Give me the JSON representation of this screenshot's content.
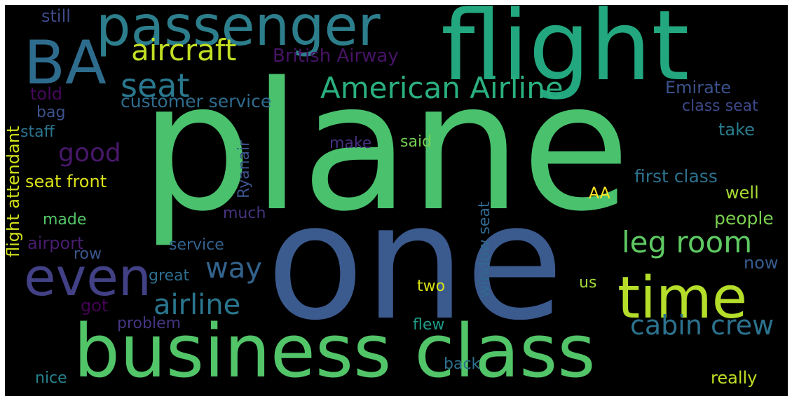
{
  "words": {
    "plane": {
      "text": "plane",
      "color": "#4ac16d"
    },
    "one": {
      "text": "one",
      "color": "#3b5a8e"
    },
    "flight": {
      "text": "flight",
      "color": "#23a77f"
    },
    "passenger": {
      "text": "passenger",
      "color": "#2d7e8c"
    },
    "BA": {
      "text": "BA",
      "color": "#2e6c8e"
    },
    "business_class": {
      "text": "business class",
      "color": "#52c569"
    },
    "time": {
      "text": "time",
      "color": "#b5de2b"
    },
    "even": {
      "text": "even",
      "color": "#424186"
    },
    "aircraft": {
      "text": "aircraft",
      "color": "#c2df23"
    },
    "American_Airline": {
      "text": "American Airline",
      "color": "#2ab07f"
    },
    "seat": {
      "text": "seat",
      "color": "#29788e"
    },
    "leg_room": {
      "text": "leg room",
      "color": "#5ec962"
    },
    "cabin_crew": {
      "text": "cabin crew",
      "color": "#2c728e"
    },
    "airline": {
      "text": "airline",
      "color": "#2a768e"
    },
    "way": {
      "text": "way",
      "color": "#33638d"
    },
    "good": {
      "text": "good",
      "color": "#48186a"
    },
    "British_Airway": {
      "text": "British Airway",
      "color": "#471365"
    },
    "customer_service": {
      "text": "customer service",
      "color": "#2f6c8e"
    },
    "Emirate": {
      "text": "Emirate",
      "color": "#3b528b"
    },
    "class_seat": {
      "text": "class seat",
      "color": "#3e4989"
    },
    "first_class": {
      "text": "first class",
      "color": "#2c718e"
    },
    "take": {
      "text": "take",
      "color": "#287d8e"
    },
    "well": {
      "text": "well",
      "color": "#a8db34"
    },
    "people": {
      "text": "people",
      "color": "#7ad151"
    },
    "now": {
      "text": "now",
      "color": "#365c8d"
    },
    "seat_front": {
      "text": "seat front",
      "color": "#dde318"
    },
    "flight_attendant": {
      "text": "flight attendant",
      "color": "#d2e21b"
    },
    "still": {
      "text": "still",
      "color": "#3e4c8a"
    },
    "told": {
      "text": "told",
      "color": "#46085c"
    },
    "bag": {
      "text": "bag",
      "color": "#3b528b"
    },
    "staff": {
      "text": "staff",
      "color": "#2b748e"
    },
    "made": {
      "text": "made",
      "color": "#54c568"
    },
    "airport": {
      "text": "airport",
      "color": "#481d6f"
    },
    "row": {
      "text": "row",
      "color": "#39568c"
    },
    "service": {
      "text": "service",
      "color": "#33638d"
    },
    "great": {
      "text": "great",
      "color": "#2e6e8e"
    },
    "got": {
      "text": "got",
      "color": "#440154"
    },
    "problem": {
      "text": "problem",
      "color": "#453581"
    },
    "nice": {
      "text": "nice",
      "color": "#26828e"
    },
    "make": {
      "text": "make",
      "color": "#462f7e"
    },
    "said": {
      "text": "said",
      "color": "#75d054"
    },
    "much": {
      "text": "much",
      "color": "#46337e"
    },
    "AA": {
      "text": "AA",
      "color": "#fde725"
    },
    "two": {
      "text": "two",
      "color": "#d8e219"
    },
    "us": {
      "text": "us",
      "color": "#a2da37"
    },
    "flew": {
      "text": "flew",
      "color": "#1f9e89"
    },
    "back": {
      "text": "back",
      "color": "#2d718e"
    },
    "really": {
      "text": "really",
      "color": "#c0df25"
    },
    "Ryanair": {
      "text": "Ryanair",
      "color": "#3b528b"
    },
    "window_seat": {
      "text": "window seat",
      "color": "#31688e"
    }
  }
}
